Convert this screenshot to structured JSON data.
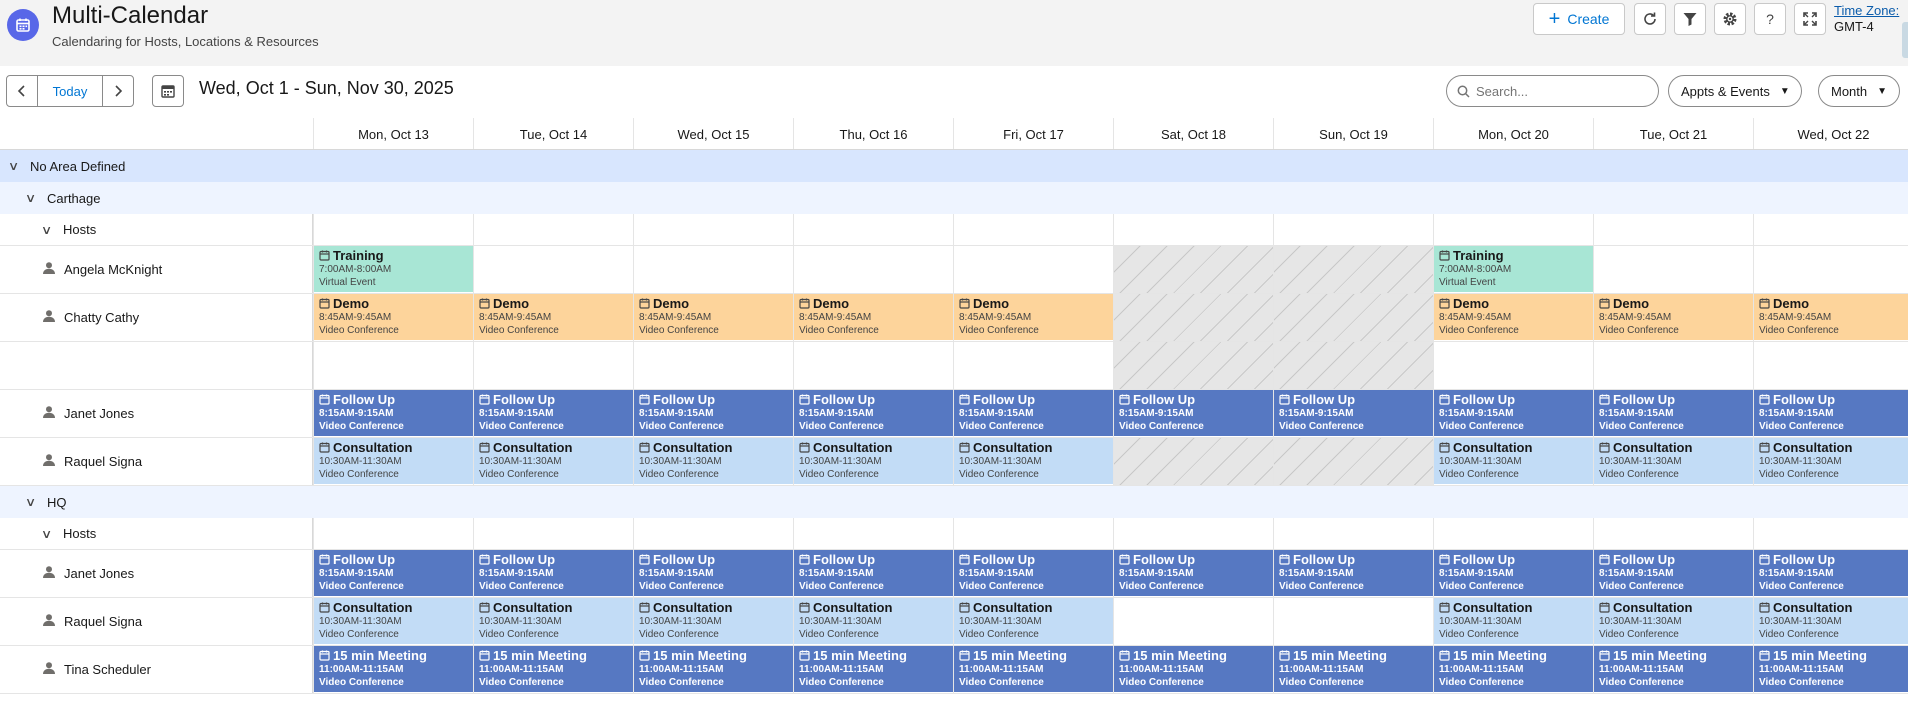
{
  "app": {
    "title": "Multi-Calendar",
    "subtitle": "Calendaring for Hosts, Locations & Resources",
    "create_label": "Create",
    "timezone_label": "Time Zone:",
    "timezone_value": "GMT-4"
  },
  "toolbar": {
    "today_label": "Today",
    "date_range": "Wed, Oct 1 - Sun, Nov 30, 2025",
    "search_placeholder": "Search...",
    "filter_select": "Appts & Events",
    "view_select": "Month"
  },
  "days": [
    "Mon, Oct 13",
    "Tue, Oct 14",
    "Wed, Oct 15",
    "Thu, Oct 16",
    "Fri, Oct 17",
    "Sat, Oct 18",
    "Sun, Oct 19",
    "Mon, Oct 20",
    "Tue, Oct 21",
    "Wed, Oct 22"
  ],
  "colors": {
    "training": "#a8e6d5",
    "demo": "#fdd49b",
    "follow_up": "#5678c2",
    "consultation": "#c2dcf6",
    "meeting": "#5678c2",
    "area_row": "#d8e6fe",
    "accent": "#0176d3"
  },
  "event_types": {
    "training": {
      "title": "Training",
      "time": "7:00AM-8:00AM",
      "sub": "Virtual Event"
    },
    "demo": {
      "title": "Demo",
      "time": "8:45AM-9:45AM",
      "sub": "Video Conference"
    },
    "followup": {
      "title": "Follow Up",
      "time": "8:15AM-9:15AM",
      "sub": "Video Conference"
    },
    "consult": {
      "title": "Consultation",
      "time": "10:30AM-11:30AM",
      "sub": "Video Conference"
    },
    "meeting": {
      "title": "15 min Meeting",
      "time": "11:00AM-11:15AM",
      "sub": "Video Conference"
    }
  },
  "rows": [
    {
      "kind": "area",
      "label": "No Area Defined"
    },
    {
      "kind": "loc",
      "label": "Carthage"
    },
    {
      "kind": "sub",
      "label": "Hosts"
    },
    {
      "kind": "res",
      "label": "Angela McKnight",
      "cells": [
        "training",
        "",
        "",
        "",
        "",
        "off",
        "off",
        "training",
        "",
        ""
      ]
    },
    {
      "kind": "res",
      "label": "Chatty Cathy",
      "cells": [
        "demo",
        "demo",
        "demo",
        "demo",
        "demo",
        "off",
        "off",
        "demo",
        "demo",
        "demo"
      ]
    },
    {
      "kind": "res",
      "label": "",
      "cells": [
        "",
        "",
        "",
        "",
        "",
        "off",
        "off",
        "",
        "",
        ""
      ]
    },
    {
      "kind": "res",
      "label": "Janet Jones",
      "cells": [
        "followup",
        "followup",
        "followup",
        "followup",
        "followup",
        "followup",
        "followup",
        "followup",
        "followup",
        "followup"
      ]
    },
    {
      "kind": "res",
      "label": "Raquel Signa",
      "cells": [
        "consult",
        "consult",
        "consult",
        "consult",
        "consult",
        "off",
        "off",
        "consult",
        "consult",
        "consult"
      ]
    },
    {
      "kind": "loc",
      "label": "HQ"
    },
    {
      "kind": "sub",
      "label": "Hosts"
    },
    {
      "kind": "res",
      "label": "Janet Jones",
      "cells": [
        "followup",
        "followup",
        "followup",
        "followup",
        "followup",
        "followup",
        "followup",
        "followup",
        "followup",
        "followup"
      ]
    },
    {
      "kind": "res",
      "label": "Raquel Signa",
      "cells": [
        "consult",
        "consult",
        "consult",
        "consult",
        "consult",
        "",
        "",
        "consult",
        "consult",
        "consult"
      ]
    },
    {
      "kind": "res",
      "label": "Tina Scheduler",
      "cells": [
        "meeting",
        "meeting",
        "meeting",
        "meeting",
        "meeting",
        "meeting",
        "meeting",
        "meeting",
        "meeting",
        "meeting"
      ]
    }
  ]
}
